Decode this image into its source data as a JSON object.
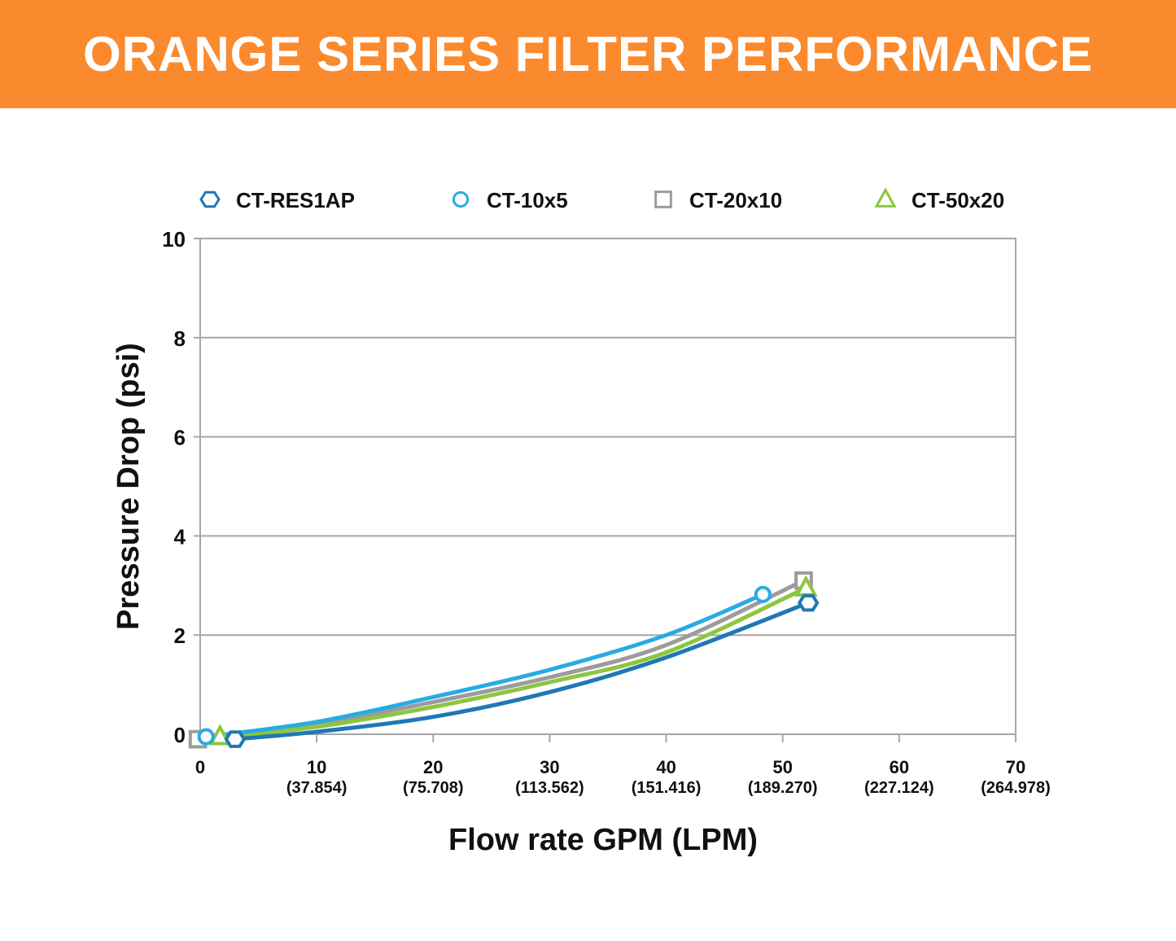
{
  "header": {
    "title": "ORANGE SERIES FILTER PERFORMANCE"
  },
  "colors": {
    "banner": "#fb8a2e",
    "grid": "#a6a6a6",
    "text": "#111111"
  },
  "chart_data": {
    "type": "line",
    "title": "",
    "xlabel": "Flow rate GPM (LPM)",
    "ylabel": "Pressure Drop (psi)",
    "xlim": [
      0,
      70
    ],
    "ylim": [
      0,
      10
    ],
    "grid": true,
    "legend_position": "top",
    "x_ticks": [
      {
        "value": 0,
        "label": "0",
        "sublabel": ""
      },
      {
        "value": 10,
        "label": "10",
        "sublabel": "(37.854)"
      },
      {
        "value": 20,
        "label": "20",
        "sublabel": "(75.708)"
      },
      {
        "value": 30,
        "label": "30",
        "sublabel": "(113.562)"
      },
      {
        "value": 40,
        "label": "40",
        "sublabel": "(151.416)"
      },
      {
        "value": 50,
        "label": "50",
        "sublabel": "(189.270)"
      },
      {
        "value": 60,
        "label": "60",
        "sublabel": "(227.124)"
      },
      {
        "value": 70,
        "label": "70",
        "sublabel": "(264.978)"
      }
    ],
    "y_ticks": [
      {
        "value": 0,
        "label": "0"
      },
      {
        "value": 2,
        "label": "2"
      },
      {
        "value": 4,
        "label": "4"
      },
      {
        "value": 6,
        "label": "6"
      },
      {
        "value": 8,
        "label": "8"
      },
      {
        "value": 10,
        "label": "10"
      }
    ],
    "series": [
      {
        "name": "CT-RES1AP",
        "marker": "hexagon",
        "color": "#1f78b4",
        "x": [
          3.0,
          10,
          20,
          30,
          40,
          52.2
        ],
        "y": [
          -0.1,
          0.05,
          0.35,
          0.85,
          1.55,
          2.65
        ]
      },
      {
        "name": "CT-10x5",
        "marker": "circle",
        "color": "#29abe2",
        "x": [
          0.5,
          10,
          20,
          30,
          40,
          48.3
        ],
        "y": [
          -0.05,
          0.25,
          0.75,
          1.3,
          2.0,
          2.82
        ]
      },
      {
        "name": "CT-20x10",
        "marker": "square",
        "color": "#9b9b9b",
        "x": [
          -0.2,
          10,
          20,
          30,
          40,
          51.8
        ],
        "y": [
          -0.1,
          0.2,
          0.65,
          1.15,
          1.8,
          3.1
        ]
      },
      {
        "name": "CT-50x20",
        "marker": "triangle",
        "color": "#8cc63f",
        "x": [
          1.7,
          10,
          20,
          30,
          40,
          52.0
        ],
        "y": [
          -0.05,
          0.15,
          0.55,
          1.05,
          1.65,
          2.95
        ]
      }
    ]
  }
}
